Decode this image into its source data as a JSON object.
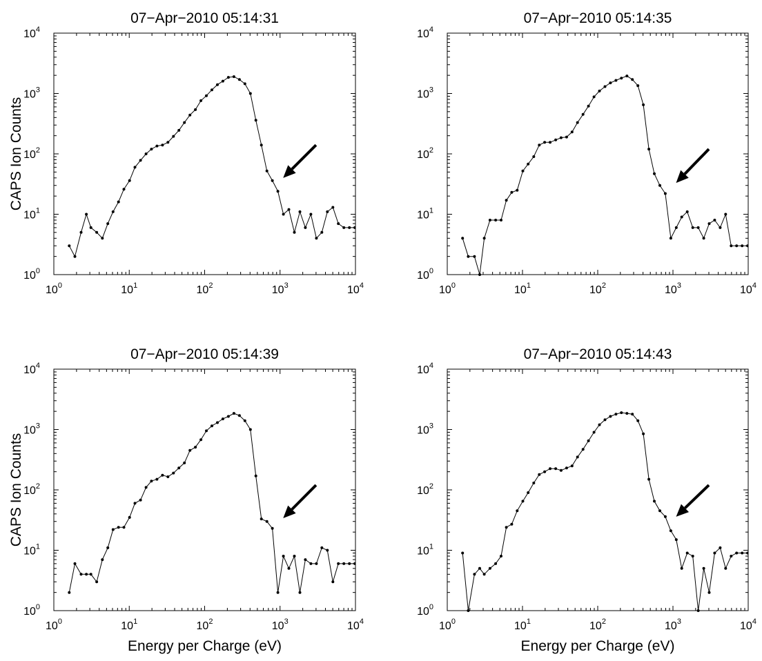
{
  "chart_data": [
    {
      "type": "line",
      "title": "07−Apr−2010 05:14:31",
      "ylabel": "CAPS Ion Counts",
      "xlabel": "",
      "xscale": "log",
      "yscale": "log",
      "xlim": [
        1,
        10000
      ],
      "ylim": [
        1,
        10000
      ],
      "grid": false,
      "annotation": {
        "type": "arrow",
        "tail": [
          3000,
          140
        ],
        "head": [
          1100,
          40
        ]
      },
      "series": [
        {
          "x": [
            1.6,
            1.9,
            2.3,
            2.7,
            3.1,
            3.7,
            4.4,
            5.2,
            6.1,
            7.2,
            8.5,
            10.1,
            11.9,
            14.1,
            16.7,
            19.7,
            23.3,
            27.6,
            32.6,
            38.6,
            45.6,
            53.9,
            63.8,
            75.4,
            89.2,
            105.5,
            124.8,
            147.6,
            174.6,
            206.5,
            244.3,
            289,
            341.8,
            404.3,
            478.2,
            565.6,
            669,
            791.3,
            936,
            1107,
            1309,
            1549,
            1832,
            2167,
            2563,
            3031,
            3585,
            4241,
            5016,
            5933,
            7018,
            8300,
            9818
          ],
          "y": [
            3,
            2,
            5,
            10,
            6,
            5,
            4,
            7,
            11,
            16,
            26,
            36,
            60,
            78,
            100,
            120,
            135,
            140,
            155,
            195,
            245,
            330,
            440,
            540,
            760,
            920,
            1150,
            1400,
            1600,
            1850,
            1900,
            1700,
            1450,
            1000,
            360,
            140,
            52,
            36,
            24,
            10,
            12,
            5,
            11,
            6,
            10,
            4,
            5,
            11,
            13,
            7,
            6,
            6,
            6
          ]
        }
      ]
    },
    {
      "type": "line",
      "title": "07−Apr−2010 05:14:35",
      "ylabel": "",
      "xlabel": "",
      "xscale": "log",
      "yscale": "log",
      "xlim": [
        1,
        10000
      ],
      "ylim": [
        1,
        10000
      ],
      "grid": false,
      "annotation": {
        "type": "arrow",
        "tail": [
          3000,
          120
        ],
        "head": [
          1100,
          33
        ]
      },
      "series": [
        {
          "x": [
            1.6,
            1.9,
            2.3,
            2.7,
            3.1,
            3.7,
            4.4,
            5.2,
            6.1,
            7.2,
            8.5,
            10.1,
            11.9,
            14.1,
            16.7,
            19.7,
            23.3,
            27.6,
            32.6,
            38.6,
            45.6,
            53.9,
            63.8,
            75.4,
            89.2,
            105.5,
            124.8,
            147.6,
            174.6,
            206.5,
            244.3,
            289,
            341.8,
            404.3,
            478.2,
            565.6,
            669,
            791.3,
            936,
            1107,
            1309,
            1549,
            1832,
            2167,
            2563,
            3031,
            3585,
            4241,
            5016,
            5933,
            7018,
            8300,
            9818
          ],
          "y": [
            4,
            2,
            2,
            1,
            4,
            8,
            8,
            8,
            17,
            23,
            25,
            52,
            68,
            90,
            140,
            155,
            155,
            170,
            185,
            190,
            230,
            330,
            450,
            620,
            880,
            1100,
            1300,
            1500,
            1650,
            1800,
            1950,
            1700,
            1350,
            650,
            120,
            47,
            30,
            22,
            4,
            6,
            9,
            11,
            6,
            6,
            4,
            7,
            8,
            6,
            10,
            3,
            3,
            3,
            3
          ]
        }
      ]
    },
    {
      "type": "line",
      "title": "07−Apr−2010 05:14:39",
      "ylabel": "CAPS Ion Counts",
      "xlabel": "Energy per Charge (eV)",
      "xscale": "log",
      "yscale": "log",
      "xlim": [
        1,
        10000
      ],
      "ylim": [
        1,
        10000
      ],
      "grid": false,
      "annotation": {
        "type": "arrow",
        "tail": [
          3000,
          120
        ],
        "head": [
          1100,
          34
        ]
      },
      "series": [
        {
          "x": [
            1.6,
            1.9,
            2.3,
            2.7,
            3.1,
            3.7,
            4.4,
            5.2,
            6.1,
            7.2,
            8.5,
            10.1,
            11.9,
            14.1,
            16.7,
            19.7,
            23.3,
            27.6,
            32.6,
            38.6,
            45.6,
            53.9,
            63.8,
            75.4,
            89.2,
            105.5,
            124.8,
            147.6,
            174.6,
            206.5,
            244.3,
            289,
            341.8,
            404.3,
            478.2,
            565.6,
            669,
            791.3,
            936,
            1107,
            1309,
            1549,
            1832,
            2167,
            2563,
            3031,
            3585,
            4241,
            5016,
            5933,
            7018,
            8300,
            9818
          ],
          "y": [
            2,
            6,
            4,
            4,
            4,
            3,
            7,
            11,
            22,
            24,
            24,
            35,
            60,
            68,
            110,
            140,
            150,
            175,
            165,
            190,
            230,
            280,
            450,
            510,
            680,
            950,
            1150,
            1300,
            1500,
            1650,
            1850,
            1700,
            1400,
            1000,
            170,
            33,
            30,
            23,
            2,
            8,
            5,
            8,
            2,
            7,
            6,
            6,
            11,
            10,
            3,
            6,
            6,
            6,
            6
          ]
        }
      ]
    },
    {
      "type": "line",
      "title": "07−Apr−2010 05:14:43",
      "ylabel": "",
      "xlabel": "Energy per Charge (eV)",
      "xscale": "log",
      "yscale": "log",
      "xlim": [
        1,
        10000
      ],
      "ylim": [
        1,
        10000
      ],
      "grid": false,
      "annotation": {
        "type": "arrow",
        "tail": [
          3000,
          120
        ],
        "head": [
          1100,
          36
        ]
      },
      "series": [
        {
          "x": [
            1.6,
            1.9,
            2.3,
            2.7,
            3.1,
            3.7,
            4.4,
            5.2,
            6.1,
            7.2,
            8.5,
            10.1,
            11.9,
            14.1,
            16.7,
            19.7,
            23.3,
            27.6,
            32.6,
            38.6,
            45.6,
            53.9,
            63.8,
            75.4,
            89.2,
            105.5,
            124.8,
            147.6,
            174.6,
            206.5,
            244.3,
            289,
            341.8,
            404.3,
            478.2,
            565.6,
            669,
            791.3,
            936,
            1107,
            1309,
            1549,
            1832,
            2167,
            2563,
            3031,
            3585,
            4241,
            5016,
            5933,
            7018,
            8300,
            9818
          ],
          "y": [
            9,
            1,
            4,
            5,
            4,
            5,
            6,
            8,
            24,
            27,
            45,
            65,
            90,
            130,
            180,
            200,
            225,
            225,
            210,
            230,
            250,
            350,
            470,
            650,
            900,
            1200,
            1450,
            1650,
            1800,
            1900,
            1850,
            1800,
            1400,
            850,
            150,
            65,
            45,
            36,
            21,
            15,
            5,
            9,
            8,
            1,
            5,
            2,
            9,
            11,
            5,
            8,
            9,
            9,
            9
          ]
        }
      ]
    }
  ]
}
